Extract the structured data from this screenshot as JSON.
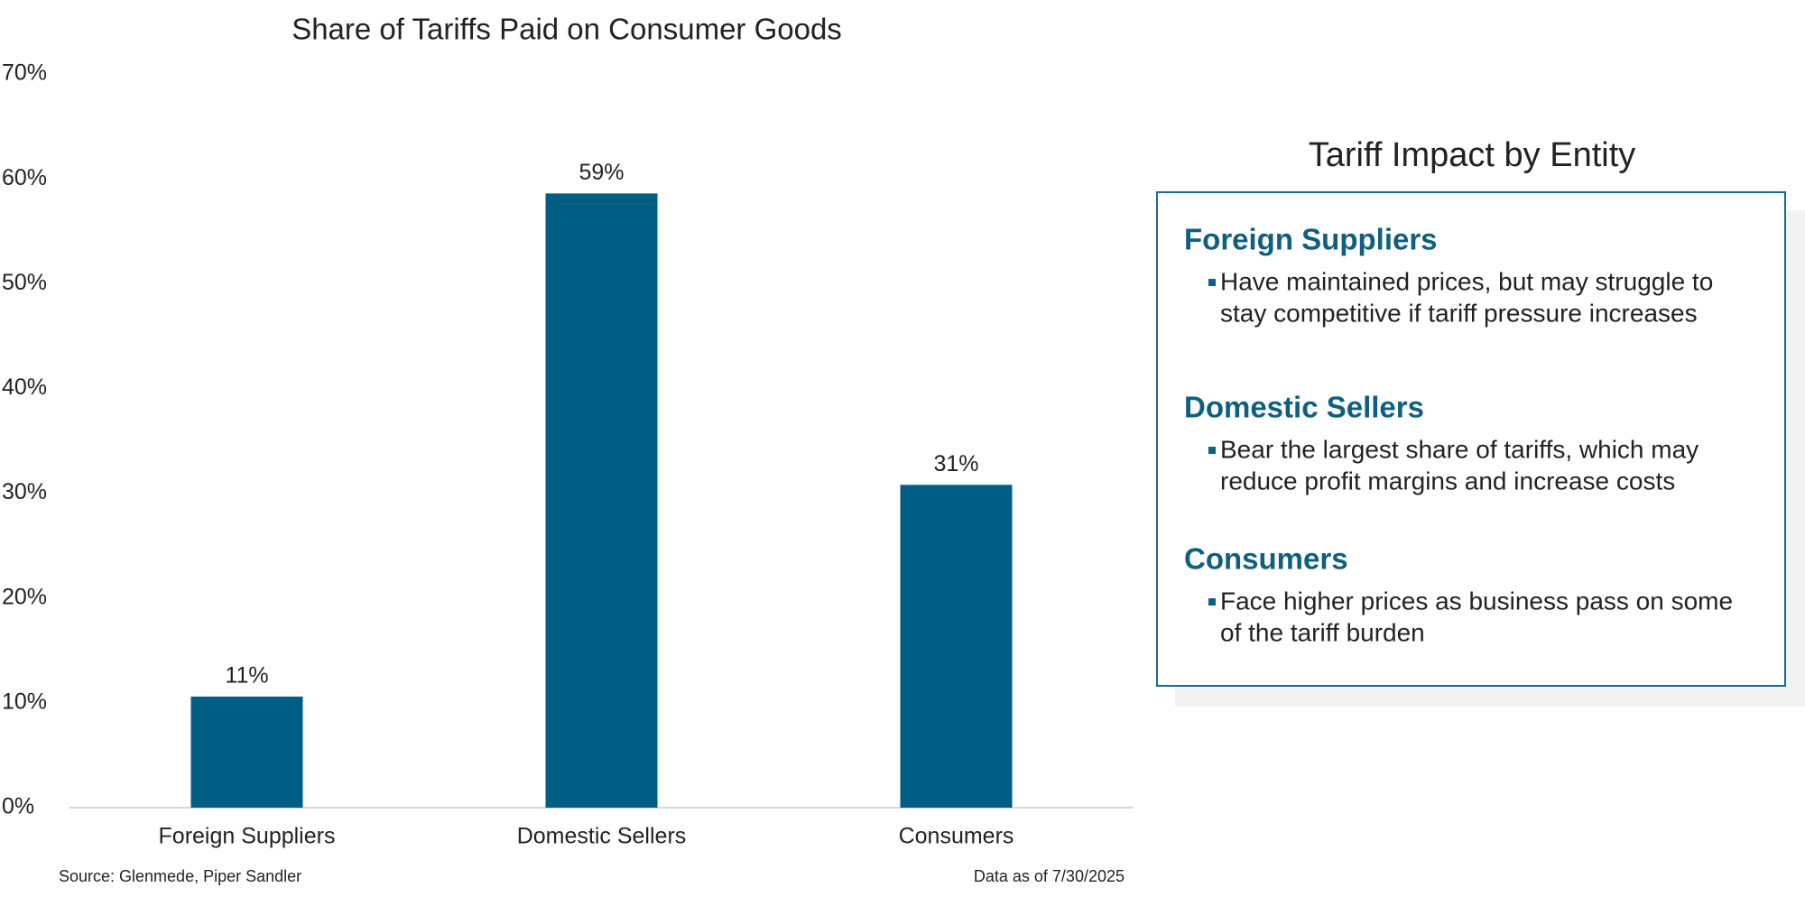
{
  "chart_data": {
    "type": "bar",
    "title": "Share of Tariffs Paid on Consumer Goods",
    "categories": [
      "Foreign Suppliers",
      "Domestic Sellers",
      "Consumers"
    ],
    "values": [
      10.6,
      58.6,
      30.8
    ],
    "value_labels": [
      "11%",
      "59%",
      "31%"
    ],
    "color": "#005e84",
    "ylim": [
      0,
      70
    ],
    "yticks": [
      {
        "value": 0,
        "label": "0%"
      },
      {
        "value": 10,
        "label": "10%"
      },
      {
        "value": 20,
        "label": "20%"
      },
      {
        "value": 30,
        "label": "30%"
      },
      {
        "value": 40,
        "label": "40%"
      },
      {
        "value": 50,
        "label": "50%"
      },
      {
        "value": 60,
        "label": "60%"
      },
      {
        "value": 70,
        "label": "70%"
      }
    ],
    "grid": false,
    "source": "Source: Glenmede, Piper Sandler",
    "date_note": "Data as of 7/30/2025"
  },
  "panel": {
    "title": "Tariff Impact by Entity",
    "items": [
      {
        "heading": "Foreign Suppliers",
        "lines": [
          "Have maintained prices, but may struggle to",
          "stay competitive if tariff pressure increases"
        ]
      },
      {
        "heading": "Domestic Sellers",
        "lines": [
          "Bear the largest share of tariffs, which may",
          "reduce profit margins and increase costs"
        ]
      },
      {
        "heading": "Consumers",
        "lines": [
          "Face higher prices as business pass on some",
          "of the tariff burden"
        ]
      }
    ]
  }
}
